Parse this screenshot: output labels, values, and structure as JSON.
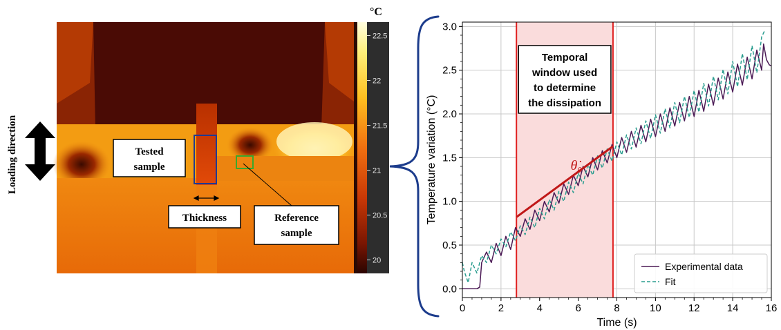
{
  "thermal": {
    "loading_direction": "Loading direction",
    "tested_sample": [
      "Tested",
      "sample"
    ],
    "thickness": "Thickness",
    "reference_sample": [
      "Reference",
      "sample"
    ],
    "colorbar_unit": "°C",
    "colorbar_ticks": [
      {
        "value": 22.5,
        "label": "22.5"
      },
      {
        "value": 22,
        "label": "22"
      },
      {
        "value": 21.5,
        "label": "21.5"
      },
      {
        "value": 21,
        "label": "21"
      },
      {
        "value": 20.5,
        "label": "20.5"
      },
      {
        "value": 20,
        "label": "20"
      }
    ],
    "colorbar_range": [
      19.85,
      22.65
    ],
    "colors": {
      "tested_box": "#1f3a93",
      "reference_box": "#3aa82d",
      "brace": "#1c3c8c"
    }
  },
  "chart_data": {
    "type": "line",
    "title": "",
    "xlabel": "Time (s)",
    "ylabel": "Temperature variation (°C)",
    "xlim": [
      0,
      16
    ],
    "ylim": [
      -0.1,
      3.05
    ],
    "xticks": [
      0,
      2,
      4,
      6,
      8,
      10,
      12,
      14,
      16
    ],
    "yticks": [
      0.0,
      0.5,
      1.0,
      1.5,
      2.0,
      2.5,
      3.0
    ],
    "grid": true,
    "legend_position": "bottom-right",
    "highlight_window": {
      "x": [
        2.8,
        7.8
      ],
      "label": [
        "Temporal",
        "window used",
        "to determine",
        "the dissipation"
      ],
      "fill": "#fadcdc",
      "edge": "#e02020"
    },
    "annotation": {
      "label": "θ̇₀",
      "line_start": [
        2.8,
        0.82
      ],
      "line_end": [
        7.8,
        1.63
      ],
      "color": "#c01818"
    },
    "series": [
      {
        "name": "Experimental data",
        "color": "#4b1a55",
        "style": "solid",
        "x": [
          0,
          0.25,
          0.5,
          0.75,
          0.9,
          1.0,
          1.25,
          1.5,
          1.75,
          2.0,
          2.25,
          2.5,
          2.75,
          3.0,
          3.25,
          3.5,
          3.75,
          4.0,
          4.25,
          4.5,
          4.75,
          5.0,
          5.25,
          5.5,
          5.75,
          6.0,
          6.25,
          6.5,
          6.75,
          7.0,
          7.25,
          7.5,
          7.75,
          8.0,
          8.25,
          8.5,
          8.75,
          9.0,
          9.25,
          9.5,
          9.75,
          10.0,
          10.25,
          10.5,
          10.75,
          11.0,
          11.25,
          11.5,
          11.75,
          12.0,
          12.25,
          12.5,
          12.75,
          13.0,
          13.25,
          13.5,
          13.75,
          14.0,
          14.25,
          14.5,
          14.75,
          15.0,
          15.25,
          15.5,
          15.6,
          15.75,
          15.9,
          16.0
        ],
        "y": [
          0.0,
          0.0,
          0.0,
          0.0,
          0.02,
          0.3,
          0.42,
          0.3,
          0.52,
          0.38,
          0.6,
          0.45,
          0.7,
          0.6,
          0.8,
          0.68,
          0.9,
          0.78,
          1.0,
          0.88,
          1.1,
          0.98,
          1.2,
          1.08,
          1.3,
          1.18,
          1.4,
          1.28,
          1.5,
          1.36,
          1.58,
          1.44,
          1.65,
          1.5,
          1.73,
          1.56,
          1.8,
          1.62,
          1.87,
          1.68,
          1.94,
          1.74,
          2.0,
          1.8,
          2.07,
          1.86,
          2.13,
          1.92,
          2.2,
          1.97,
          2.27,
          2.03,
          2.34,
          2.1,
          2.41,
          2.17,
          2.48,
          2.25,
          2.57,
          2.33,
          2.65,
          2.4,
          2.73,
          2.5,
          2.8,
          2.62,
          2.56,
          2.55
        ]
      },
      {
        "name": "Fit",
        "color": "#2a9d8f",
        "style": "dashed",
        "x": [
          0,
          0.1,
          0.3,
          0.5,
          0.75,
          1.0,
          1.25,
          1.5,
          1.75,
          2.0,
          2.25,
          2.5,
          2.75,
          3.0,
          3.25,
          3.5,
          3.75,
          4.0,
          4.25,
          4.5,
          4.75,
          5.0,
          5.25,
          5.5,
          5.75,
          6.0,
          6.25,
          6.5,
          6.75,
          7.0,
          7.25,
          7.5,
          7.75,
          8.0,
          8.25,
          8.5,
          8.75,
          9.0,
          9.25,
          9.5,
          9.75,
          10.0,
          10.25,
          10.5,
          10.75,
          11.0,
          11.25,
          11.5,
          11.75,
          12.0,
          12.25,
          12.5,
          12.75,
          13.0,
          13.25,
          13.5,
          13.75,
          14.0,
          14.25,
          14.5,
          14.75,
          15.0,
          15.25,
          15.5,
          15.65
        ],
        "y": [
          0.3,
          0.2,
          0.07,
          0.3,
          0.18,
          0.38,
          0.3,
          0.5,
          0.4,
          0.57,
          0.48,
          0.65,
          0.55,
          0.72,
          0.62,
          0.82,
          0.7,
          0.92,
          0.8,
          1.02,
          0.9,
          1.12,
          1.0,
          1.22,
          1.1,
          1.32,
          1.2,
          1.42,
          1.3,
          1.52,
          1.38,
          1.6,
          1.46,
          1.68,
          1.53,
          1.76,
          1.6,
          1.84,
          1.66,
          1.92,
          1.72,
          1.99,
          1.78,
          2.06,
          1.84,
          2.13,
          1.9,
          2.2,
          1.96,
          2.27,
          2.02,
          2.35,
          2.09,
          2.43,
          2.16,
          2.51,
          2.23,
          2.6,
          2.31,
          2.69,
          2.39,
          2.78,
          2.47,
          2.88,
          2.95
        ]
      }
    ]
  }
}
